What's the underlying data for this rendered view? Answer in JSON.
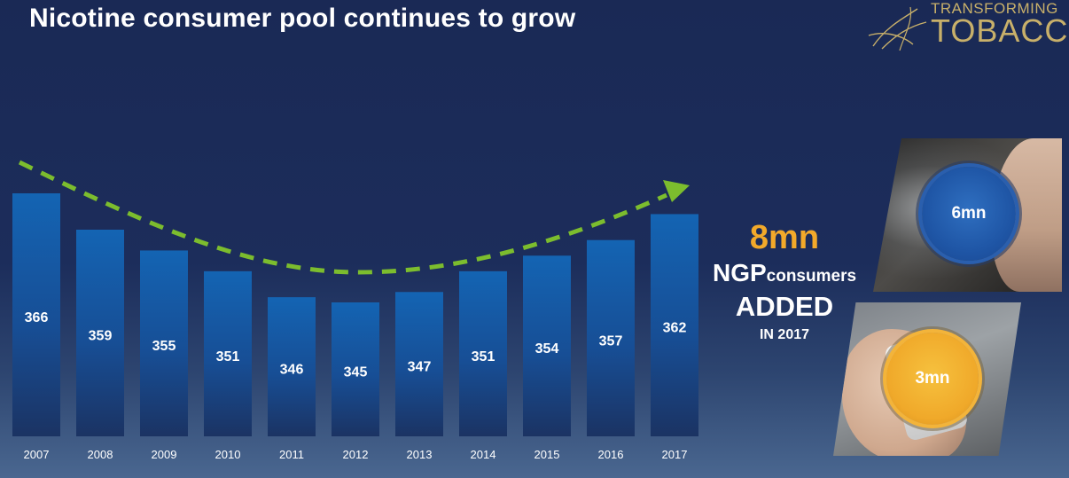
{
  "title": "Nicotine consumer pool continues to grow",
  "logo": {
    "line1": "TRANSFORMING",
    "line2": "TOBACCO"
  },
  "chart_data": {
    "type": "bar",
    "categories": [
      "2007",
      "2008",
      "2009",
      "2010",
      "2011",
      "2012",
      "2013",
      "2014",
      "2015",
      "2016",
      "2017"
    ],
    "values": [
      366,
      359,
      355,
      351,
      346,
      345,
      347,
      351,
      354,
      357,
      362
    ],
    "title": "",
    "xlabel": "",
    "ylabel": "",
    "ylim": [
      320,
      370
    ],
    "trend": "dashed arrow, down then up"
  },
  "added": {
    "amount": "8mn",
    "ngp": "NGP",
    "consumers": "consumers",
    "word": "ADDED",
    "year": "IN 2017"
  },
  "badges": {
    "vapor": "6mn",
    "heated": "3mn"
  },
  "colors": {
    "bar_top": "#1462b0",
    "bar_bottom": "#1a3568",
    "trend": "#7cbd2e",
    "accent": "#f2a92a",
    "badge_blue": "#2264b5"
  }
}
